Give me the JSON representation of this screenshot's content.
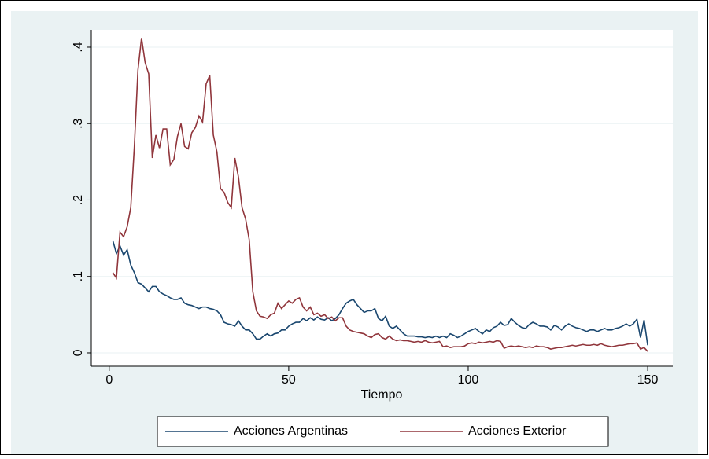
{
  "chart_data": {
    "type": "line",
    "x_label": "Tiempo",
    "x": [
      1,
      2,
      3,
      4,
      5,
      6,
      7,
      8,
      9,
      10,
      11,
      12,
      13,
      14,
      15,
      16,
      17,
      18,
      19,
      20,
      21,
      22,
      23,
      24,
      25,
      26,
      27,
      28,
      29,
      30,
      31,
      32,
      33,
      34,
      35,
      36,
      37,
      38,
      39,
      40,
      41,
      42,
      43,
      44,
      45,
      46,
      47,
      48,
      49,
      50,
      51,
      52,
      53,
      54,
      55,
      56,
      57,
      58,
      59,
      60,
      61,
      62,
      63,
      64,
      65,
      66,
      67,
      68,
      69,
      70,
      71,
      72,
      73,
      74,
      75,
      76,
      77,
      78,
      79,
      80,
      81,
      82,
      83,
      84,
      85,
      86,
      87,
      88,
      89,
      90,
      91,
      92,
      93,
      94,
      95,
      96,
      97,
      98,
      99,
      100,
      101,
      102,
      103,
      104,
      105,
      106,
      107,
      108,
      109,
      110,
      111,
      112,
      113,
      114,
      115,
      116,
      117,
      118,
      119,
      120,
      121,
      122,
      123,
      124,
      125,
      126,
      127,
      128,
      129,
      130,
      131,
      132,
      133,
      134,
      135,
      136,
      137,
      138,
      139,
      140,
      141,
      142,
      143,
      144,
      145,
      146,
      147,
      148,
      149,
      150
    ],
    "series": [
      {
        "name": "Acciones Argentinas",
        "color": "#1a476f",
        "values": [
          0.147,
          0.13,
          0.14,
          0.128,
          0.135,
          0.115,
          0.105,
          0.092,
          0.09,
          0.085,
          0.08,
          0.087,
          0.087,
          0.08,
          0.077,
          0.075,
          0.072,
          0.07,
          0.07,
          0.072,
          0.065,
          0.063,
          0.062,
          0.06,
          0.058,
          0.06,
          0.06,
          0.058,
          0.057,
          0.055,
          0.05,
          0.04,
          0.038,
          0.037,
          0.035,
          0.042,
          0.035,
          0.03,
          0.03,
          0.025,
          0.018,
          0.018,
          0.022,
          0.025,
          0.022,
          0.025,
          0.026,
          0.03,
          0.03,
          0.035,
          0.038,
          0.04,
          0.04,
          0.045,
          0.042,
          0.046,
          0.043,
          0.047,
          0.044,
          0.043,
          0.046,
          0.042,
          0.045,
          0.05,
          0.058,
          0.065,
          0.068,
          0.07,
          0.063,
          0.058,
          0.053,
          0.055,
          0.055,
          0.058,
          0.045,
          0.042,
          0.048,
          0.035,
          0.032,
          0.035,
          0.03,
          0.025,
          0.022,
          0.022,
          0.022,
          0.021,
          0.021,
          0.02,
          0.021,
          0.02,
          0.022,
          0.02,
          0.022,
          0.02,
          0.025,
          0.023,
          0.02,
          0.022,
          0.025,
          0.028,
          0.03,
          0.032,
          0.028,
          0.025,
          0.03,
          0.028,
          0.033,
          0.035,
          0.04,
          0.036,
          0.037,
          0.045,
          0.04,
          0.036,
          0.033,
          0.032,
          0.037,
          0.04,
          0.038,
          0.035,
          0.035,
          0.034,
          0.03,
          0.036,
          0.034,
          0.03,
          0.035,
          0.038,
          0.035,
          0.033,
          0.032,
          0.03,
          0.028,
          0.03,
          0.03,
          0.028,
          0.03,
          0.032,
          0.03,
          0.03,
          0.032,
          0.033,
          0.035,
          0.038,
          0.035,
          0.038,
          0.044,
          0.02,
          0.043,
          0.01
        ]
      },
      {
        "name": "Acciones Exterior",
        "color": "#90353b",
        "values": [
          0.105,
          0.098,
          0.158,
          0.152,
          0.165,
          0.19,
          0.27,
          0.37,
          0.412,
          0.38,
          0.365,
          0.255,
          0.285,
          0.268,
          0.293,
          0.293,
          0.246,
          0.253,
          0.283,
          0.3,
          0.27,
          0.267,
          0.288,
          0.295,
          0.31,
          0.302,
          0.352,
          0.363,
          0.285,
          0.263,
          0.215,
          0.21,
          0.197,
          0.19,
          0.255,
          0.23,
          0.19,
          0.175,
          0.148,
          0.08,
          0.055,
          0.048,
          0.047,
          0.045,
          0.05,
          0.052,
          0.065,
          0.058,
          0.063,
          0.068,
          0.065,
          0.07,
          0.072,
          0.06,
          0.055,
          0.06,
          0.05,
          0.052,
          0.048,
          0.05,
          0.045,
          0.047,
          0.042,
          0.046,
          0.046,
          0.035,
          0.03,
          0.028,
          0.027,
          0.026,
          0.025,
          0.022,
          0.02,
          0.024,
          0.025,
          0.02,
          0.018,
          0.022,
          0.018,
          0.016,
          0.017,
          0.016,
          0.016,
          0.015,
          0.014,
          0.015,
          0.014,
          0.016,
          0.014,
          0.013,
          0.014,
          0.015,
          0.008,
          0.009,
          0.007,
          0.008,
          0.008,
          0.008,
          0.009,
          0.012,
          0.013,
          0.012,
          0.014,
          0.013,
          0.014,
          0.015,
          0.014,
          0.016,
          0.015,
          0.006,
          0.008,
          0.009,
          0.008,
          0.009,
          0.008,
          0.007,
          0.008,
          0.007,
          0.009,
          0.008,
          0.008,
          0.007,
          0.005,
          0.006,
          0.007,
          0.007,
          0.008,
          0.009,
          0.01,
          0.009,
          0.01,
          0.011,
          0.01,
          0.01,
          0.011,
          0.01,
          0.012,
          0.01,
          0.009,
          0.008,
          0.009,
          0.01,
          0.01,
          0.011,
          0.012,
          0.012,
          0.013,
          0.005,
          0.007,
          0.002
        ]
      }
    ],
    "xlim": [
      -5,
      157
    ],
    "xticks": [
      0,
      50,
      100,
      150
    ],
    "ylim": [
      -0.0175,
      0.4226
    ],
    "yticks": [
      {
        "value": 0,
        "label": "0"
      },
      {
        "value": 0.1,
        "label": ".1"
      },
      {
        "value": 0.2,
        "label": ".2"
      },
      {
        "value": 0.3,
        "label": ".3"
      },
      {
        "value": 0.4,
        "label": ".4"
      }
    ],
    "grid": true,
    "legend": "bottom"
  }
}
